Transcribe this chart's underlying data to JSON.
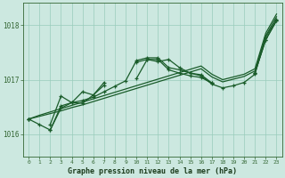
{
  "title": "Graphe pression niveau de la mer (hPa)",
  "bg_color": "#cce8e0",
  "plot_bg_color": "#cce8e0",
  "grid_color": "#99ccbb",
  "line_color": "#1a5c2a",
  "xlim": [
    -0.5,
    23.5
  ],
  "ylim": [
    1015.6,
    1018.4
  ],
  "yticks": [
    1016,
    1017,
    1018
  ],
  "x_labels": [
    "0",
    "1",
    "2",
    "3",
    "4",
    "5",
    "6",
    "7",
    "8",
    "9",
    "10",
    "11",
    "12",
    "13",
    "14",
    "15",
    "16",
    "17",
    "18",
    "19",
    "20",
    "21",
    "22",
    "23"
  ],
  "smooth_line1": [
    1016.28,
    1016.35,
    1016.41,
    1016.47,
    1016.53,
    1016.59,
    1016.65,
    1016.71,
    1016.77,
    1016.83,
    1016.89,
    1016.95,
    1017.01,
    1017.07,
    1017.13,
    1017.19,
    1017.25,
    1017.1,
    1017.0,
    1017.05,
    1017.1,
    1017.2,
    1017.85,
    1018.2
  ],
  "smooth_line2": [
    1016.28,
    1016.33,
    1016.38,
    1016.43,
    1016.49,
    1016.54,
    1016.6,
    1016.66,
    1016.72,
    1016.78,
    1016.84,
    1016.9,
    1016.96,
    1017.02,
    1017.08,
    1017.14,
    1017.2,
    1017.05,
    1016.96,
    1017.01,
    1017.06,
    1017.16,
    1017.8,
    1018.15
  ],
  "marked_line1": [
    1016.28,
    null,
    1016.18,
    1016.7,
    1016.58,
    1016.78,
    1016.72,
    1016.9,
    null,
    null,
    1017.32,
    1017.37,
    1017.37,
    1017.18,
    1017.12,
    1017.07,
    1017.04,
    1016.94,
    null,
    null,
    null,
    1017.13,
    1017.73,
    1018.08
  ],
  "marked_line2": [
    1016.28,
    null,
    1016.08,
    1016.52,
    1016.58,
    1016.57,
    1016.72,
    1016.95,
    null,
    null,
    1017.02,
    1017.37,
    1017.33,
    1017.37,
    1017.22,
    1017.12,
    1017.09,
    1016.94,
    null,
    null,
    null,
    1017.13,
    1017.73,
    1018.08
  ],
  "marked_line3": [
    1016.28,
    1016.18,
    1016.08,
    1016.48,
    1016.58,
    1016.62,
    1016.68,
    1016.78,
    1016.88,
    1016.98,
    1017.35,
    1017.4,
    1017.4,
    1017.22,
    1017.18,
    1017.12,
    1017.07,
    1016.92,
    1016.85,
    1016.89,
    1016.95,
    1017.1,
    1017.78,
    1018.1
  ]
}
